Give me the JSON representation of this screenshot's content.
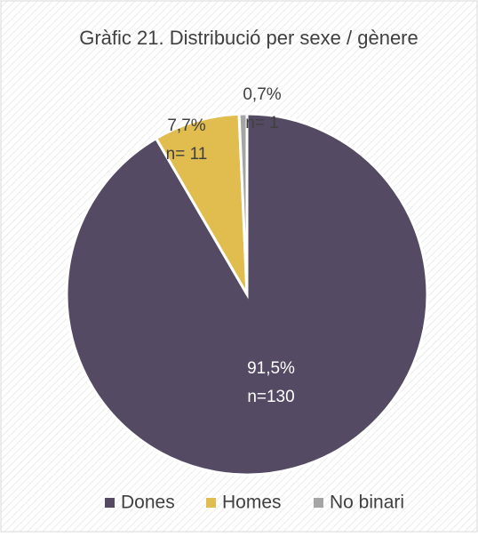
{
  "chart_data": {
    "type": "pie",
    "title": "Gràfic 21. Distribució per sexe / gènere",
    "categories": [
      "Dones",
      "Homes",
      "No binari"
    ],
    "values": [
      91.5,
      7.7,
      0.7
    ],
    "value_labels": [
      "91,5%",
      "7,7%",
      "0,7%"
    ],
    "counts": [
      130,
      11,
      1
    ],
    "count_labels": [
      "n=130",
      "n= 11",
      "n= 1"
    ],
    "colors": [
      "#554a63",
      "#e0bd4e",
      "#a5a5a5"
    ],
    "legend": "bottom"
  }
}
